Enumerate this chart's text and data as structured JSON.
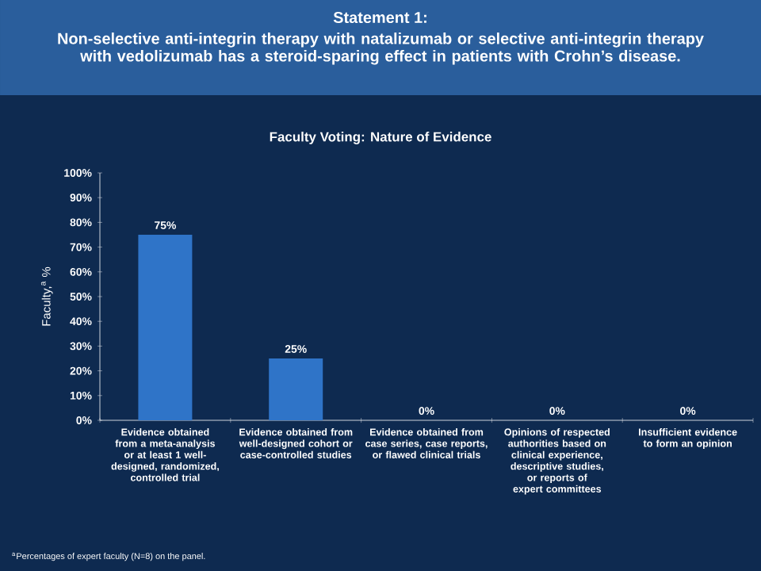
{
  "chart_data": {
    "type": "bar",
    "title": "Statement 1:",
    "subtitle": "Non-selective anti-integrin therapy with natalizumab or selective anti-integrin therapy with vedolizumab has a steroid-sparing effect in patients with Crohn’s disease.",
    "annotations": [
      "Faculty Voting: Nature of Evidence",
      "$^{a}$Percentages of expert faculty (N=8) on the panel."
    ],
    "ylabel": "Faculty,$^{a}$ %",
    "categories": [
      "Evidence obtained from a meta-analysis or at least 1 well-designed, randomized, controlled trial",
      "Evidence obtained from well-designed cohort or case-controlled studies",
      "Evidence obtained from case series, case reports, or flawed clinical trials",
      "Opinions of respected authorities based on clinical experience, descriptive studies, or reports of expert committees",
      "Insufficient evidence to form an opinion"
    ],
    "values": [
      75,
      25,
      0,
      0,
      0
    ],
    "value_labels": [
      "75%",
      "25%",
      "0%",
      "0%",
      "0%"
    ],
    "color": "#2f74c8",
    "ylim": [
      0,
      100
    ],
    "yticks": [
      {
        "value": 0,
        "label": "0%"
      },
      {
        "value": 10,
        "label": "10%"
      },
      {
        "value": 20,
        "label": "20%"
      },
      {
        "value": 30,
        "label": "30%"
      },
      {
        "value": 40,
        "label": "40%"
      },
      {
        "value": 50,
        "label": "50%"
      },
      {
        "value": 60,
        "label": "60%"
      },
      {
        "value": 70,
        "label": "70%"
      },
      {
        "value": 80,
        "label": "80%"
      },
      {
        "value": 90,
        "label": "90%"
      },
      {
        "value": 100,
        "label": "100%"
      }
    ]
  }
}
